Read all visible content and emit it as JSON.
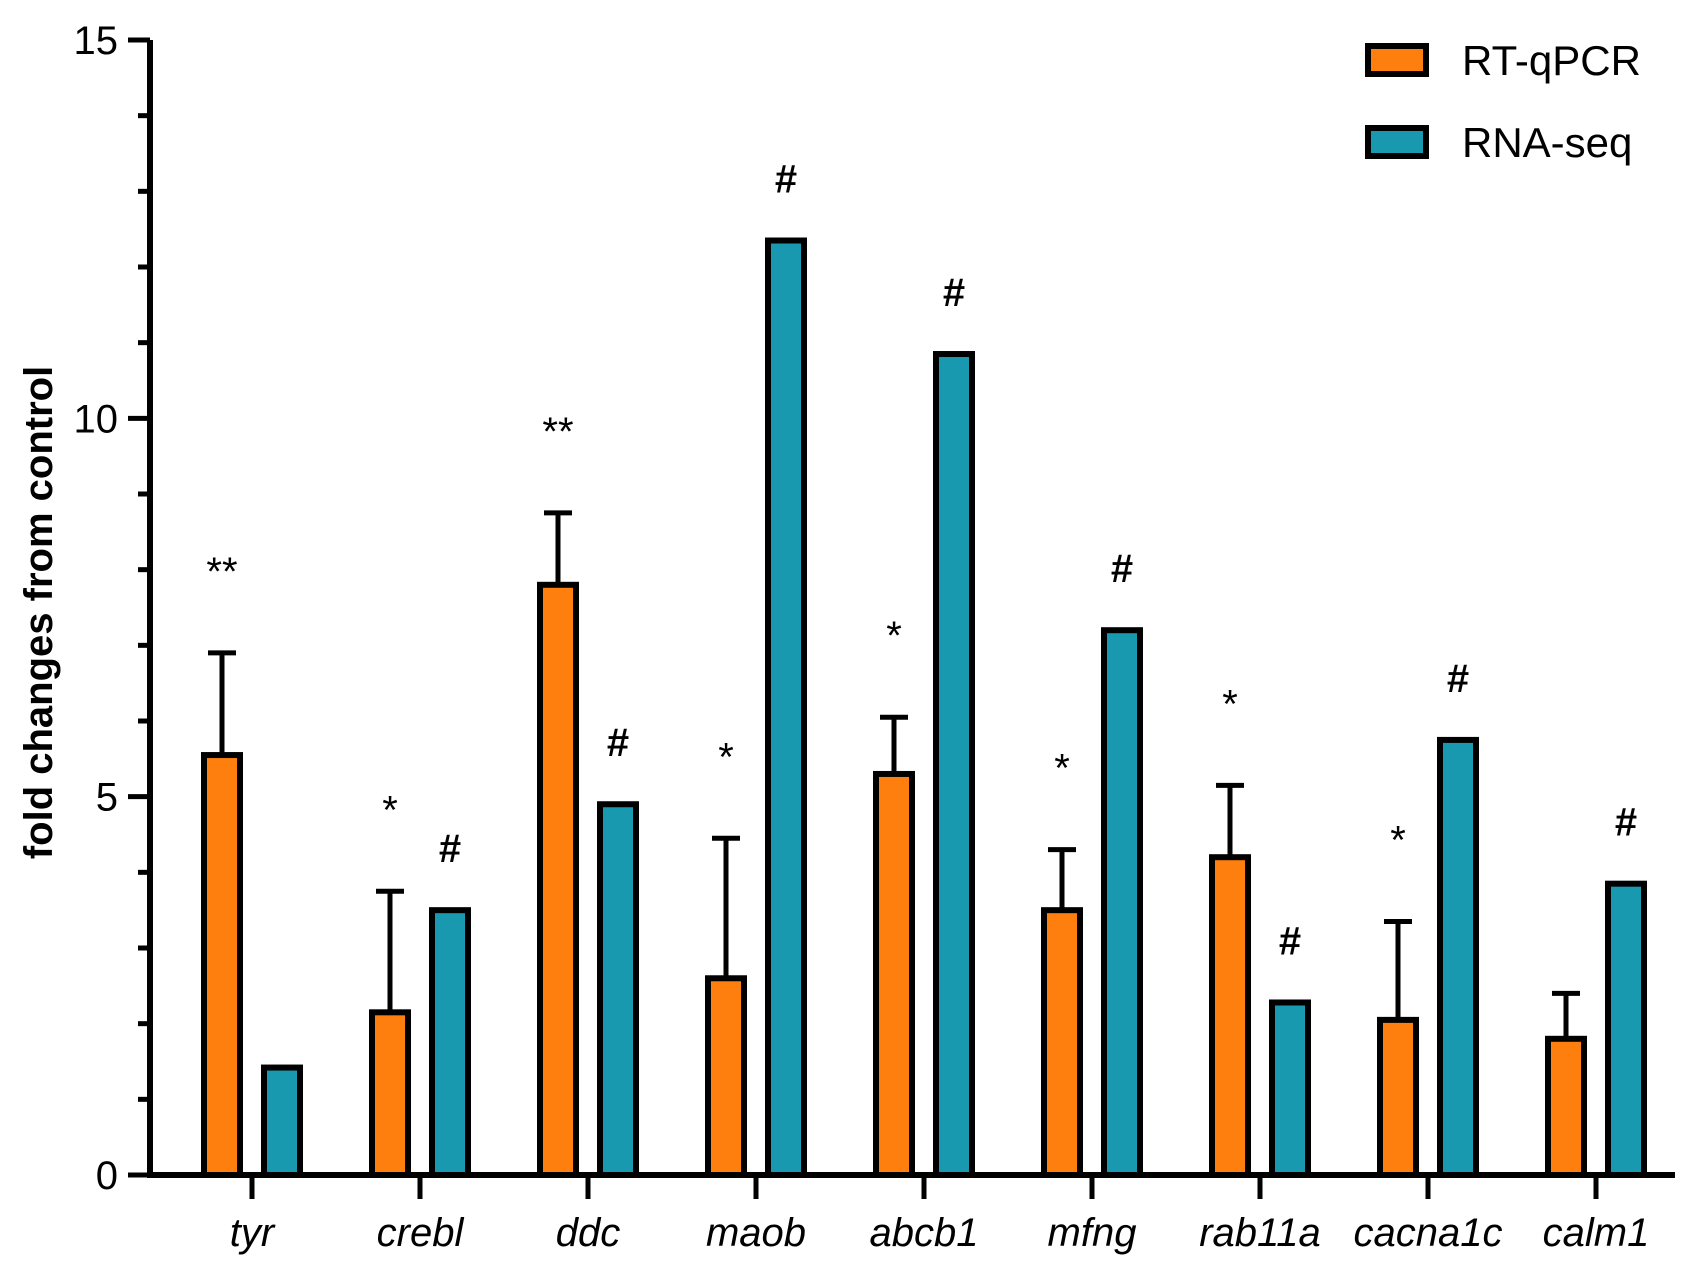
{
  "chart_data": {
    "type": "bar",
    "title": "",
    "xlabel": "",
    "ylabel": "fold changes from control",
    "ylim": [
      0,
      15
    ],
    "yticks": [
      0,
      5,
      10,
      15
    ],
    "categories": [
      "tyr",
      "crebl",
      "ddc",
      "maob",
      "abcb1",
      "mfng",
      "rab11a",
      "cacna1c",
      "calm1"
    ],
    "series": [
      {
        "name": "RT-qPCR",
        "color": "#ff7f0e",
        "values": [
          5.55,
          2.15,
          7.8,
          2.6,
          5.3,
          3.5,
          4.2,
          2.05,
          1.8
        ],
        "error": [
          1.35,
          1.6,
          0.95,
          1.85,
          0.75,
          0.8,
          0.95,
          1.3,
          0.6
        ],
        "significance": [
          "**",
          "*",
          "**",
          "*",
          "*",
          "*",
          "*",
          "*",
          ""
        ]
      },
      {
        "name": "RNA-seq",
        "color": "#1899b0",
        "values": [
          1.42,
          3.5,
          4.9,
          12.35,
          10.85,
          7.2,
          2.28,
          5.75,
          3.85
        ],
        "error": [
          0,
          0,
          0,
          0,
          0,
          0,
          0,
          0,
          0
        ],
        "significance": [
          "",
          "#",
          "#",
          "#",
          "#",
          "#",
          "#",
          "#",
          "#"
        ]
      }
    ],
    "legend": {
      "position": "top-right",
      "entries": [
        "RT-qPCR",
        "RNA-seq"
      ]
    }
  }
}
